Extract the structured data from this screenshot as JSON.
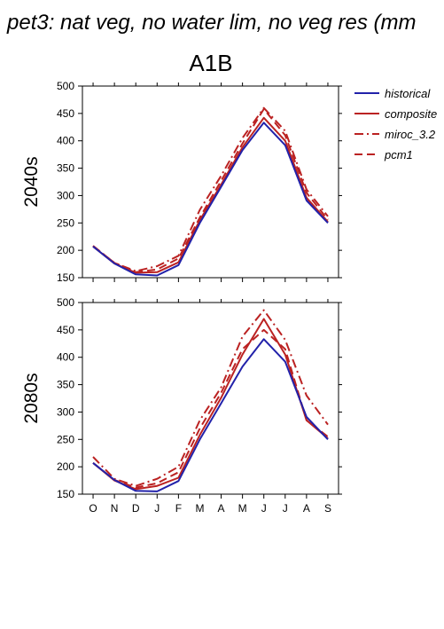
{
  "figure": {
    "title": "pet3: nat veg, no water lim, no veg res (mm",
    "subtitle": "A1B"
  },
  "legend": [
    {
      "name": "historical",
      "color": "#2222aa",
      "style": "solid"
    },
    {
      "name": "composite",
      "color": "#bb2222",
      "style": "solid"
    },
    {
      "name": "miroc_3.2",
      "color": "#bb2222",
      "style": "dashdot"
    },
    {
      "name": "pcm1",
      "color": "#bb2222",
      "style": "dashed"
    }
  ],
  "chart_data": [
    {
      "type": "line",
      "row_label": "2040s",
      "categories": [
        "O",
        "N",
        "D",
        "J",
        "F",
        "M",
        "A",
        "M",
        "J",
        "J",
        "A",
        "S"
      ],
      "ylim": [
        150,
        500
      ],
      "yticks": [
        150,
        200,
        250,
        300,
        350,
        400,
        450,
        500
      ],
      "grid": false,
      "series": [
        {
          "name": "historical",
          "values": [
            207,
            176,
            156,
            154,
            173,
            250,
            316,
            383,
            433,
            392,
            291,
            250
          ]
        },
        {
          "name": "composite",
          "values": [
            207,
            176,
            159,
            160,
            178,
            255,
            320,
            388,
            442,
            400,
            296,
            252
          ]
        },
        {
          "name": "miroc_3.2",
          "values": [
            208,
            177,
            162,
            171,
            190,
            274,
            336,
            405,
            460,
            418,
            311,
            262
          ]
        },
        {
          "name": "pcm1",
          "values": [
            208,
            177,
            160,
            165,
            185,
            260,
            327,
            395,
            458,
            410,
            305,
            256
          ]
        }
      ]
    },
    {
      "type": "line",
      "row_label": "2080s",
      "categories": [
        "O",
        "N",
        "D",
        "J",
        "F",
        "M",
        "A",
        "M",
        "J",
        "J",
        "A",
        "S"
      ],
      "ylim": [
        150,
        500
      ],
      "yticks": [
        150,
        200,
        250,
        300,
        350,
        400,
        450,
        500
      ],
      "grid": false,
      "series": [
        {
          "name": "historical",
          "values": [
            207,
            176,
            156,
            155,
            174,
            250,
            316,
            383,
            433,
            392,
            291,
            250
          ]
        },
        {
          "name": "composite",
          "values": [
            207,
            175,
            159,
            165,
            180,
            258,
            326,
            405,
            470,
            405,
            285,
            252
          ]
        },
        {
          "name": "miroc_3.2",
          "values": [
            218,
            178,
            165,
            178,
            200,
            285,
            345,
            438,
            486,
            432,
            330,
            277
          ]
        },
        {
          "name": "pcm1",
          "values": [
            207,
            176,
            162,
            170,
            190,
            270,
            335,
            415,
            450,
            415,
            285,
            255
          ]
        }
      ]
    }
  ]
}
